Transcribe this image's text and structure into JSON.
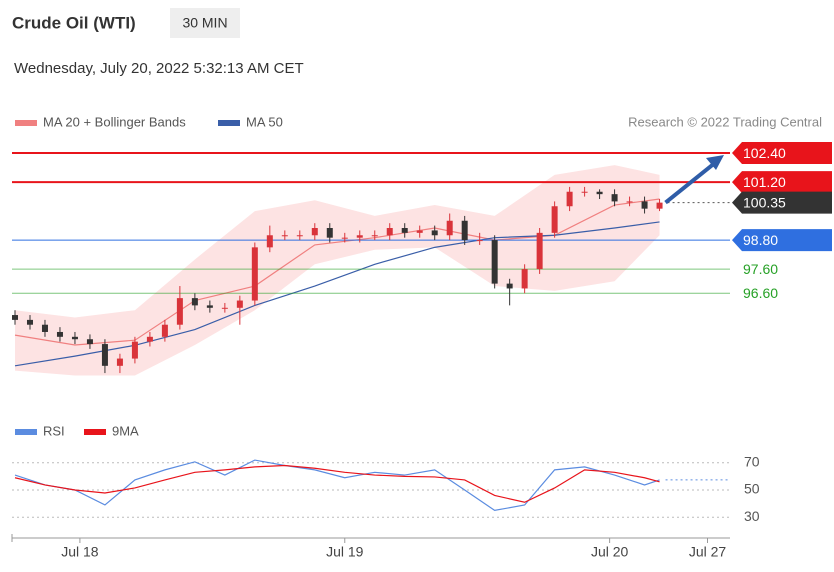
{
  "chart_data": {
    "type": "candlestick",
    "title": "Crude Oil (WTI)",
    "interval": "30 MIN",
    "timestamp": "Wednesday, July 20, 2022 5:32:13 AM CET",
    "credit": "Research © 2022 Trading Central",
    "xlim": [
      -0.2,
      47.7
    ],
    "xticks": [
      {
        "value": 4.33,
        "label": "Jul 18"
      },
      {
        "value": 22,
        "label": "Jul 19"
      },
      {
        "value": 39.67,
        "label": "Jul 20"
      },
      {
        "value": 46.2,
        "label": "Jul 27"
      }
    ],
    "ylim": [
      92.6,
      102.94
    ],
    "up_color": "#d9333a",
    "down_color": "#333333",
    "open": [
      95.7,
      95.5,
      95.3,
      95.0,
      94.8,
      94.7,
      94.5,
      93.6,
      93.9,
      94.6,
      94.8,
      95.3,
      96.4,
      96.1,
      96.0,
      96.0,
      96.3,
      98.5,
      99.0,
      99.0,
      99.0,
      99.3,
      98.9,
      98.9,
      99.0,
      99.0,
      99.3,
      99.1,
      99.2,
      99.0,
      99.6,
      98.8,
      98.8,
      97.0,
      96.8,
      97.6,
      99.1,
      100.2,
      100.8,
      100.8,
      100.7,
      100.4,
      100.4,
      100.1
    ],
    "high": [
      95.9,
      95.7,
      95.5,
      95.2,
      95.0,
      94.9,
      94.7,
      94.1,
      94.8,
      95.0,
      95.5,
      96.9,
      96.6,
      96.3,
      96.2,
      96.5,
      98.7,
      99.4,
      99.2,
      99.2,
      99.5,
      99.5,
      99.1,
      99.2,
      99.2,
      99.5,
      99.5,
      99.4,
      99.4,
      99.9,
      99.8,
      99.1,
      99.0,
      97.2,
      97.8,
      99.3,
      100.4,
      101.0,
      101.0,
      100.9,
      100.9,
      100.6,
      100.6,
      100.5
    ],
    "low": [
      95.3,
      95.1,
      94.8,
      94.6,
      94.5,
      94.3,
      93.3,
      93.3,
      93.7,
      94.4,
      94.6,
      95.1,
      95.9,
      95.8,
      95.8,
      95.3,
      96.1,
      98.3,
      98.8,
      98.8,
      98.8,
      98.7,
      98.7,
      98.7,
      98.8,
      98.8,
      98.9,
      98.9,
      98.8,
      98.8,
      98.6,
      98.6,
      96.8,
      96.1,
      96.6,
      97.4,
      98.9,
      100.0,
      100.6,
      100.5,
      100.2,
      100.2,
      99.9,
      100.0
    ],
    "close": [
      95.5,
      95.3,
      95.0,
      94.8,
      94.7,
      94.5,
      93.6,
      93.9,
      94.6,
      94.8,
      95.3,
      96.4,
      96.1,
      96.0,
      96.0,
      96.3,
      98.5,
      99.0,
      99.0,
      99.0,
      99.3,
      98.9,
      98.9,
      99.0,
      99.0,
      99.3,
      99.1,
      99.2,
      99.0,
      99.6,
      98.8,
      98.8,
      97.0,
      96.8,
      97.6,
      99.1,
      100.2,
      100.8,
      100.8,
      100.7,
      100.4,
      100.4,
      100.1,
      100.35
    ],
    "ma_x": [
      0,
      4,
      8,
      12,
      16,
      20,
      24,
      28,
      32,
      36,
      40,
      43
    ],
    "bands": {
      "name": "MA 20 + Bollinger Bands",
      "color": "#f08080",
      "fill": "#fde3e3",
      "ma": [
        94.87,
        94.46,
        94.66,
        96.3,
        96.9,
        98.6,
        98.9,
        99.3,
        98.8,
        99.0,
        100.25,
        100.5
      ],
      "upper": [
        95.9,
        95.6,
        95.9,
        98.0,
        100.0,
        100.45,
        99.8,
        100.25,
        99.8,
        101.5,
        101.9,
        101.5
      ],
      "lower": [
        93.4,
        93.2,
        93.2,
        94.46,
        95.9,
        97.8,
        98.4,
        98.5,
        96.9,
        96.7,
        97.1,
        99.0
      ]
    },
    "ma50": {
      "name": "MA 50",
      "color": "#3a5ea8",
      "values": [
        93.6,
        94.0,
        94.45,
        95.1,
        96.1,
        96.9,
        97.8,
        98.5,
        98.9,
        99.0,
        99.3,
        99.55
      ]
    },
    "levels": [
      {
        "value": 102.4,
        "label": "102.40",
        "color": "#e8141b",
        "style": "box",
        "line": "solid"
      },
      {
        "value": 101.2,
        "label": "101.20",
        "color": "#e8141b",
        "style": "box",
        "line": "solid"
      },
      {
        "value": 100.35,
        "label": "100.35",
        "color": "#333333",
        "style": "box",
        "line": "dotted"
      },
      {
        "value": 98.8,
        "label": "98.80",
        "color": "#2f6fe0",
        "style": "box",
        "line": "solid"
      },
      {
        "value": 97.6,
        "label": "97.60",
        "color": "#27a127",
        "style": "text",
        "line": "solid"
      },
      {
        "value": 96.6,
        "label": "96.60",
        "color": "#27a127",
        "style": "text",
        "line": "solid"
      }
    ],
    "rsi": {
      "ylim": [
        25,
        75
      ],
      "yticks": [
        30,
        50,
        70
      ],
      "x": [
        0,
        2,
        4,
        6,
        8,
        10,
        12,
        14,
        16,
        18,
        20,
        22,
        24,
        26,
        28,
        30,
        32,
        34,
        36,
        38,
        40,
        42,
        43
      ],
      "series": [
        {
          "name": "RSI",
          "color": "#5b8ce0",
          "values": [
            61,
            53.7,
            50,
            39,
            57.4,
            64.8,
            70.7,
            61,
            72,
            68,
            64.8,
            59,
            63,
            61,
            64.8,
            50,
            35,
            39,
            64.8,
            67,
            61,
            53.7,
            57.4
          ]
        },
        {
          "name": "9MA",
          "color": "#e8141b",
          "values": [
            59,
            53.7,
            50,
            47.8,
            51.5,
            57.4,
            63,
            64.8,
            67,
            68,
            66,
            63,
            61,
            60,
            59.6,
            57.4,
            46,
            41,
            51.5,
            64.8,
            63,
            59,
            56
          ]
        }
      ]
    }
  }
}
